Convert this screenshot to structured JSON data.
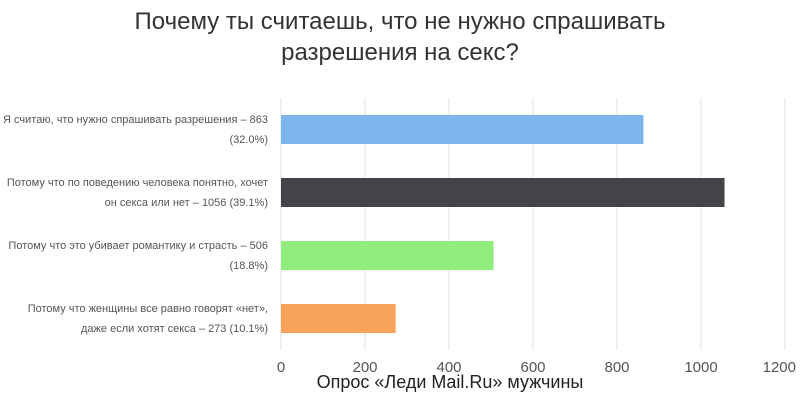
{
  "chart_data": {
    "type": "hbar",
    "title": "Почему ты считаешь, что не нужно спрашивать разрешения на секс?",
    "categories": [
      "Я считаю, что нужно спрашивать разрешения – 863 (32.0%)",
      "Потому что по поведению человека понятно, хочет он секса или нет – 1056 (39.1%)",
      "Потому что это убивает романтику и страсть – 506 (18.8%)",
      "Потому что женщины все равно говорят «нет», даже если хотят секса – 273 (10.1%)"
    ],
    "values": [
      863,
      1056,
      506,
      273
    ],
    "colors": [
      "#7cb5ec",
      "#434348",
      "#90ed7d",
      "#f7a35c"
    ],
    "xlim": [
      0,
      1200
    ],
    "xticks": [
      0,
      200,
      400,
      600,
      800,
      1000,
      1200
    ],
    "grid": true,
    "caption": "Опрос «Леди Mail.Ru» мужчины"
  }
}
